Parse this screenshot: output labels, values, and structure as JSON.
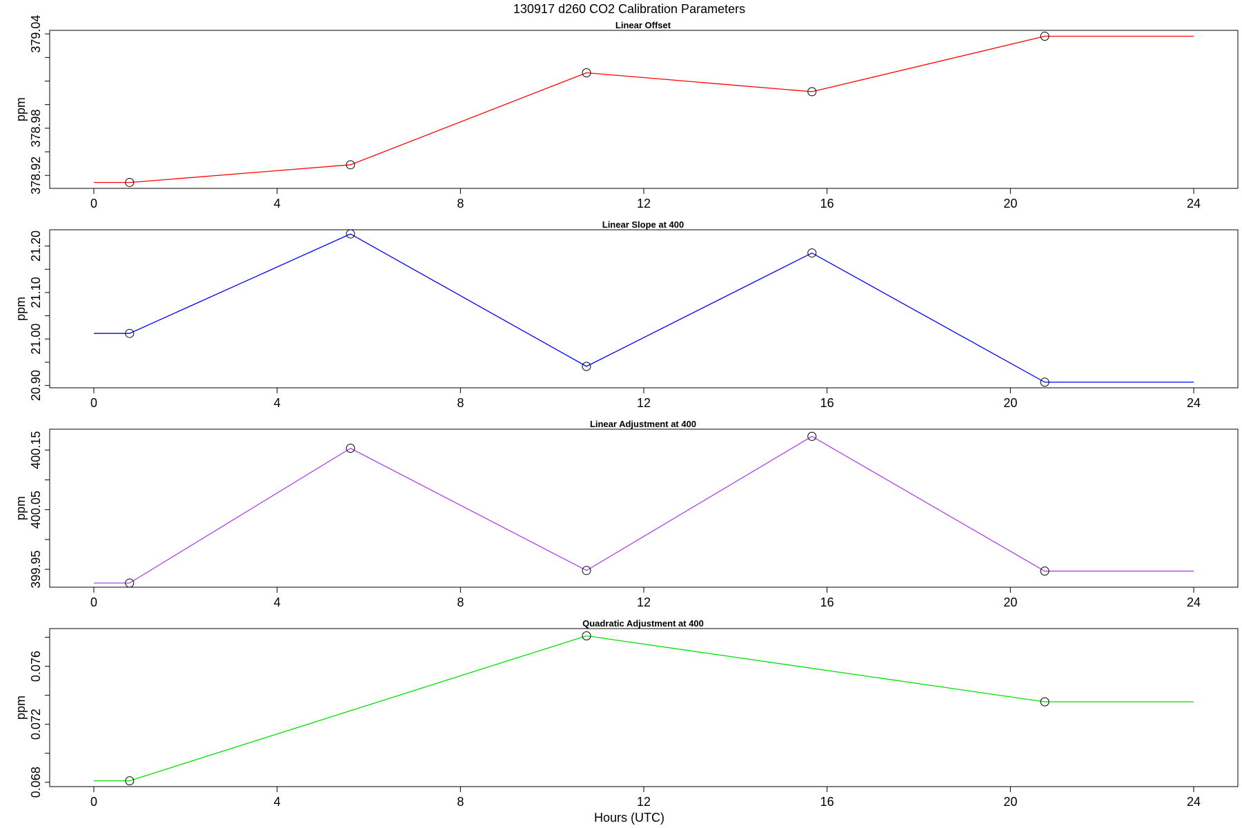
{
  "figure": {
    "title": "130917   d260   CO2 Calibration Parameters",
    "xlabel": "Hours (UTC)"
  },
  "chart_data": [
    {
      "type": "line",
      "title": "Linear Offset",
      "xlabel": "",
      "ylabel": "ppm",
      "color": "#ff0000",
      "xlim": [
        0,
        24
      ],
      "ylim": [
        378.909,
        379.043
      ],
      "xticks": [
        0,
        4,
        8,
        12,
        16,
        20,
        24
      ],
      "yticks": [
        378.92,
        378.94,
        378.96,
        378.98,
        379.0,
        379.02,
        379.04
      ],
      "yticklabels": [
        "378.92",
        "",
        "378.98",
        "",
        "",
        "",
        "379.04"
      ],
      "series": [
        {
          "x": [
            0,
            0.78,
            5.6,
            10.75,
            15.67,
            20.75,
            24
          ],
          "y": [
            378.914,
            378.914,
            378.929,
            379.007,
            378.991,
            379.038,
            379.038
          ],
          "markers": [
            false,
            true,
            true,
            true,
            true,
            true,
            false
          ]
        }
      ]
    },
    {
      "type": "line",
      "title": "Linear Slope at 400",
      "xlabel": "",
      "ylabel": "ppm",
      "color": "#0000ff",
      "xlim": [
        0,
        24
      ],
      "ylim": [
        20.895,
        21.235
      ],
      "xticks": [
        0,
        4,
        8,
        12,
        16,
        20,
        24
      ],
      "yticks": [
        20.9,
        20.95,
        21.0,
        21.05,
        21.1,
        21.15,
        21.2
      ],
      "yticklabels": [
        "20.90",
        "",
        "21.00",
        "",
        "21.10",
        "",
        "21.20"
      ],
      "series": [
        {
          "x": [
            0,
            0.78,
            5.6,
            10.75,
            15.67,
            20.75,
            24
          ],
          "y": [
            21.012,
            21.012,
            21.226,
            20.941,
            21.185,
            20.907,
            20.907
          ],
          "markers": [
            false,
            true,
            true,
            true,
            true,
            true,
            false
          ]
        }
      ]
    },
    {
      "type": "line",
      "title": "Linear Adjustment at 400",
      "xlabel": "",
      "ylabel": "ppm",
      "color": "#b040f0",
      "xlim": [
        0,
        24
      ],
      "ylim": [
        399.92,
        400.185
      ],
      "xticks": [
        0,
        4,
        8,
        12,
        16,
        20,
        24
      ],
      "yticks": [
        399.95,
        400.0,
        400.05,
        400.1,
        400.15
      ],
      "yticklabels": [
        "399.95",
        "",
        "400.05",
        "",
        "400.15"
      ],
      "series": [
        {
          "x": [
            0,
            0.78,
            5.6,
            10.75,
            15.67,
            20.75,
            24
          ],
          "y": [
            399.927,
            399.927,
            400.153,
            399.948,
            400.173,
            399.947,
            399.947
          ],
          "markers": [
            false,
            true,
            true,
            true,
            true,
            true,
            false
          ]
        }
      ]
    },
    {
      "type": "line",
      "title": "Quadratic Adjustment at 400",
      "xlabel": "Hours (UTC)",
      "ylabel": "ppm",
      "color": "#00e000",
      "xlim": [
        0,
        24
      ],
      "ylim": [
        0.0677,
        0.0786
      ],
      "xticks": [
        0,
        4,
        8,
        12,
        16,
        20,
        24
      ],
      "yticks": [
        0.068,
        0.07,
        0.072,
        0.074,
        0.076,
        0.078
      ],
      "yticklabels": [
        "0.068",
        "",
        "0.072",
        "",
        "0.076",
        ""
      ],
      "series": [
        {
          "x": [
            0,
            0.78,
            10.75,
            20.75,
            24
          ],
          "y": [
            0.0681,
            0.0681,
            0.0781,
            0.07355,
            0.07355
          ],
          "markers": [
            false,
            true,
            true,
            true,
            false
          ]
        }
      ]
    }
  ]
}
